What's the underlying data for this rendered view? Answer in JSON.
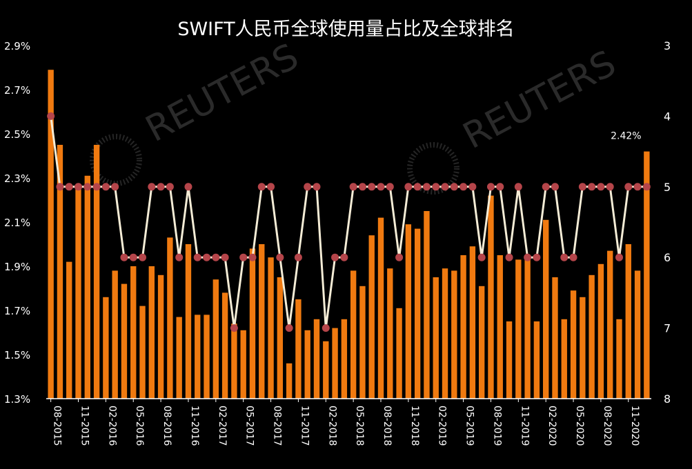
{
  "chart_data": {
    "type": "bar",
    "title": "SWIFT人民币全球使用量占比及全球排名",
    "annotation": "2.42%",
    "watermark": "REUTERS",
    "y_left": {
      "ticks": [
        "2.9%",
        "2.7%",
        "2.5%",
        "2.3%",
        "2.1%",
        "1.9%",
        "1.7%",
        "1.5%",
        "1.3%"
      ],
      "ylim": [
        1.3,
        2.9
      ]
    },
    "y_right": {
      "ticks": [
        "3",
        "4",
        "5",
        "6",
        "7",
        "8"
      ],
      "ylim": [
        3,
        8
      ],
      "inverted": true
    },
    "x_tick_labels": [
      "08-2015",
      "11-2015",
      "02-2016",
      "05-2016",
      "08-2016",
      "11-2016",
      "02-2017",
      "05-2017",
      "08-2017",
      "11-2017",
      "02-2018",
      "05-2018",
      "08-2018",
      "11-2018",
      "02-2019",
      "05-2019",
      "08-2019",
      "11-2019",
      "02-2020",
      "05-2020",
      "08-2020",
      "11-2020"
    ],
    "series": [
      {
        "type": "bar",
        "color": "#f07a10",
        "values": [
          2.79,
          2.45,
          1.92,
          2.27,
          2.31,
          2.45,
          1.76,
          1.88,
          1.82,
          1.9,
          1.72,
          1.9,
          1.86,
          2.03,
          1.67,
          2.0,
          1.68,
          1.68,
          1.84,
          1.78,
          1.64,
          1.61,
          1.98,
          2.0,
          1.94,
          1.85,
          1.46,
          1.75,
          1.61,
          1.66,
          1.56,
          1.62,
          1.66,
          1.88,
          1.81,
          2.04,
          2.12,
          1.89,
          1.71,
          2.09,
          2.07,
          2.15,
          1.85,
          1.89,
          1.88,
          1.95,
          1.99,
          1.81,
          2.22,
          1.95,
          1.65,
          1.93,
          1.95,
          1.65,
          2.11,
          1.85,
          1.66,
          1.79,
          1.76,
          1.86,
          1.91,
          1.97,
          1.66,
          2.0,
          1.88,
          2.42
        ]
      },
      {
        "type": "line",
        "axis": "right",
        "line_color": "#f4ecd6",
        "marker_color": "#b5454a",
        "values": [
          4,
          5,
          5,
          5,
          5,
          5,
          5,
          5,
          6,
          6,
          6,
          5,
          5,
          5,
          6,
          5,
          6,
          6,
          6,
          6,
          7,
          6,
          6,
          5,
          5,
          6,
          7,
          6,
          5,
          5,
          7,
          6,
          6,
          5,
          5,
          5,
          5,
          5,
          6,
          5,
          5,
          5,
          5,
          5,
          5,
          5,
          5,
          6,
          5,
          5,
          6,
          5,
          6,
          6,
          5,
          5,
          6,
          6,
          5,
          5,
          5,
          5,
          6,
          5,
          5,
          5
        ]
      }
    ]
  }
}
